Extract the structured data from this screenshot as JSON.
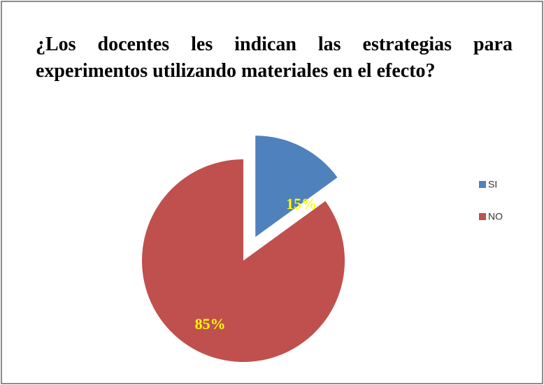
{
  "chart_data": {
    "type": "pie",
    "title": "¿Los docentes les indican las estrategias para experimentos utilizando materiales en el efecto?",
    "categories": [
      "SI",
      "NO"
    ],
    "values": [
      15,
      85
    ],
    "value_labels": [
      "15%",
      "85%"
    ],
    "colors": [
      "#4f81bd",
      "#c0504d"
    ],
    "label_color": "#ffff00",
    "legend": "right"
  }
}
